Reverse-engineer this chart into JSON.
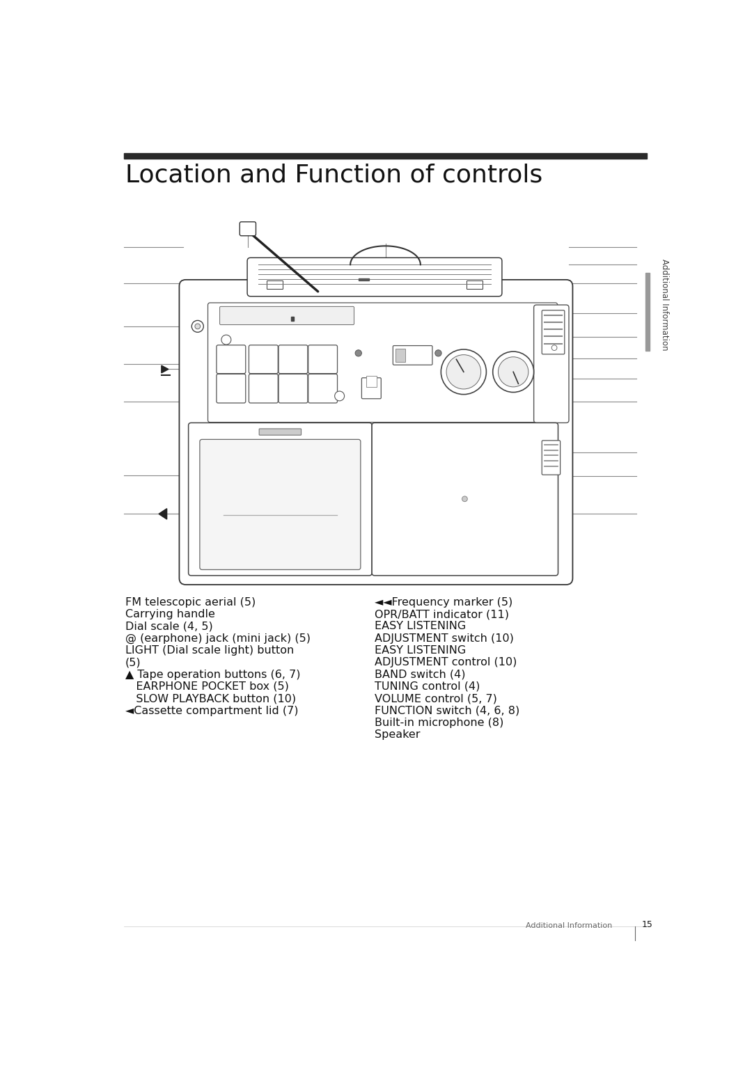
{
  "title": "Location and Function of controls",
  "title_fontsize": 26,
  "header_bar_color": "#2a2a2a",
  "background_color": "#ffffff",
  "sidebar_text": "Additional Information",
  "sidebar_color": "#444444",
  "sidebar_fontsize": 8.5,
  "sidebar_bar_color": "#999999",
  "footer_text_left": "Additional Information",
  "footer_page": "15",
  "footer_fontsize": 8,
  "left_col_items": [
    [
      "",
      "FM telescopic aerial (5)"
    ],
    [
      "",
      "Carrying handle"
    ],
    [
      "",
      "Dial scale (4, 5)"
    ],
    [
      "",
      "@ (earphone) jack (mini jack) (5)"
    ],
    [
      "",
      "LIGHT (Dial scale light) button"
    ],
    [
      "",
      "(5)"
    ],
    [
      "▲",
      " Tape operation buttons (6, 7)"
    ],
    [
      "",
      "   EARPHONE POCKET box (5)"
    ],
    [
      "",
      "   SLOW PLAYBACK button (10)"
    ],
    [
      "◄",
      "Cassette compartment lid (7)"
    ]
  ],
  "right_col_items": [
    "◄◄Frequency marker (5)",
    "OPR/BATT indicator (11)",
    "EASY LISTENING",
    "ADJUSTMENT switch (10)",
    "EASY LISTENING",
    "ADJUSTMENT control (10)",
    "BAND switch (4)",
    "TUNING control (4)",
    "VOLUME control (5, 7)",
    "FUNCTION switch (4, 6, 8)",
    "Built-in microphone (8)",
    "Speaker"
  ],
  "text_fontsize": 11.5,
  "line_color": "#888888",
  "line_lw": 0.8,
  "radio_line_color": "#333333",
  "radio_line_lw": 1.3
}
